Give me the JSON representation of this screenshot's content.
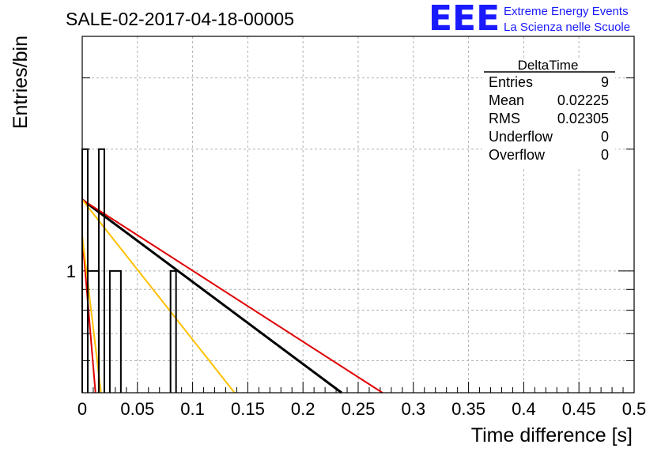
{
  "title": "SALE-02-2017-04-18-00005",
  "logo": {
    "mark": "EEE",
    "line1": "Extreme Energy Events",
    "line2": "La Scienza nelle Scuole",
    "color": "#1a1aff"
  },
  "stats_box": {
    "title": "DeltaTime",
    "rows": [
      {
        "label": "Entries",
        "value": "9"
      },
      {
        "label": "Mean",
        "value": "0.02225"
      },
      {
        "label": "RMS",
        "value": "0.02305"
      },
      {
        "label": "Underflow",
        "value": "0"
      },
      {
        "label": "Overflow",
        "value": "0"
      }
    ]
  },
  "chart_data": {
    "type": "bar",
    "title": "SALE-02-2017-04-18-00005",
    "xlabel": "Time difference [s]",
    "ylabel": "Entries/bin",
    "xlim": [
      0,
      0.5
    ],
    "ylim": [
      0.5,
      3.8
    ],
    "y_log_scale": true,
    "grid": true,
    "x_ticks": [
      "0",
      "0.05",
      "0.1",
      "0.15",
      "0.2",
      "0.25",
      "0.3",
      "0.35",
      "0.4",
      "0.45",
      "0.5"
    ],
    "y_tick_labels": [
      "1"
    ],
    "bin_width": 0.005,
    "histogram": [
      {
        "x_low": 0.0,
        "x_high": 0.005,
        "value": 2
      },
      {
        "x_low": 0.005,
        "x_high": 0.015,
        "value": 1
      },
      {
        "x_low": 0.015,
        "x_high": 0.02,
        "value": 2
      },
      {
        "x_low": 0.025,
        "x_high": 0.035,
        "value": 1
      },
      {
        "x_low": 0.08,
        "x_high": 0.085,
        "value": 1
      }
    ],
    "fit_lines": [
      {
        "color": "#000000",
        "x": [
          0,
          0.235
        ],
        "y": [
          1.5,
          0.5
        ]
      },
      {
        "color": "#e00000",
        "x": [
          0,
          0.272
        ],
        "y": [
          1.5,
          0.5
        ]
      },
      {
        "color": "#ffc000",
        "x": [
          0,
          0.138
        ],
        "y": [
          1.5,
          0.5
        ]
      },
      {
        "color": "#e00000",
        "x": [
          0,
          0.012
        ],
        "y": [
          1.22,
          0.5
        ]
      },
      {
        "color": "#ffc000",
        "x": [
          0,
          0.017
        ],
        "y": [
          1.22,
          0.5
        ]
      }
    ]
  }
}
